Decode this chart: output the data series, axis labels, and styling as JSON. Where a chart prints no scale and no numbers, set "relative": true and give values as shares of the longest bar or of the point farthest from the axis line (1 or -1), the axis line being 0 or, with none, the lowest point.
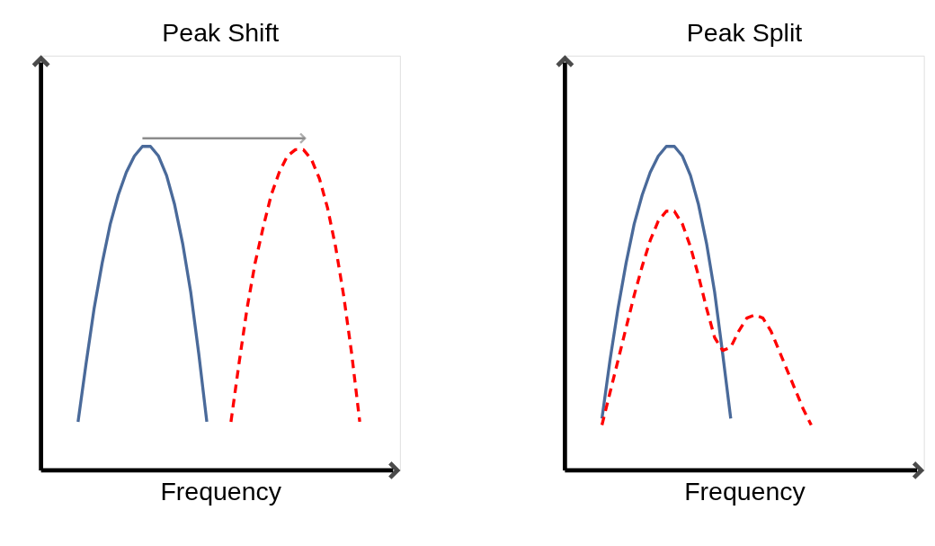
{
  "chart_data": [
    {
      "type": "line",
      "title": "Peak Shift",
      "xlabel": "Frequency",
      "relative": true,
      "grid": false,
      "categories": [
        null,
        null,
        null,
        null,
        null,
        null,
        null,
        null,
        null,
        null,
        null,
        null,
        null,
        null,
        null,
        null,
        null,
        null,
        null,
        null,
        null,
        null,
        null,
        null,
        null,
        null,
        null,
        null,
        null,
        null,
        null,
        null,
        null,
        null,
        null,
        null
      ],
      "series": [
        {
          "color": "#4a6a9a",
          "line_style": "solid",
          "values": [
            0.15,
            0.33,
            0.5,
            0.64,
            0.76,
            0.85,
            0.92,
            0.97,
            1.0,
            1.0,
            0.97,
            0.91,
            0.82,
            0.7,
            0.55,
            0.36,
            0.15,
            null,
            null,
            null,
            null,
            null,
            null,
            null,
            null,
            null,
            null,
            null,
            null,
            null,
            null,
            null,
            null,
            null,
            null,
            null
          ]
        },
        {
          "color": "#ff0000",
          "line_style": "dashed",
          "values": [
            null,
            null,
            null,
            null,
            null,
            null,
            null,
            null,
            null,
            null,
            null,
            null,
            null,
            null,
            null,
            null,
            null,
            null,
            null,
            0.15,
            0.33,
            0.5,
            0.64,
            0.75,
            0.85,
            0.92,
            0.97,
            0.99,
            0.99,
            0.96,
            0.9,
            0.81,
            0.69,
            0.54,
            0.36,
            0.15
          ]
        }
      ]
    },
    {
      "type": "line",
      "title": "Peak Split",
      "xlabel": "Frequency",
      "relative": true,
      "grid": false,
      "categories": [
        null,
        null,
        null,
        null,
        null,
        null,
        null,
        null,
        null,
        null,
        null,
        null,
        null,
        null,
        null,
        null,
        null,
        null,
        null,
        null,
        null,
        null,
        null,
        null,
        null,
        null,
        null
      ],
      "series": [
        {
          "color": "#4a6a9a",
          "line_style": "solid",
          "values": [
            0.16,
            0.34,
            0.5,
            0.64,
            0.76,
            0.85,
            0.92,
            0.97,
            1.0,
            1.0,
            0.97,
            0.91,
            0.82,
            0.7,
            0.55,
            0.36,
            0.16,
            null,
            null,
            null,
            null,
            null,
            null,
            null,
            null,
            null,
            null
          ]
        },
        {
          "color": "#ff0000",
          "line_style": "dashed",
          "values": [
            0.14,
            0.24,
            0.34,
            0.44,
            0.54,
            0.63,
            0.71,
            0.77,
            0.8,
            0.8,
            0.76,
            0.69,
            0.6,
            0.5,
            0.41,
            0.37,
            0.38,
            0.43,
            0.47,
            0.48,
            0.47,
            0.43,
            0.37,
            0.31,
            0.25,
            0.19,
            0.14
          ]
        }
      ]
    }
  ]
}
